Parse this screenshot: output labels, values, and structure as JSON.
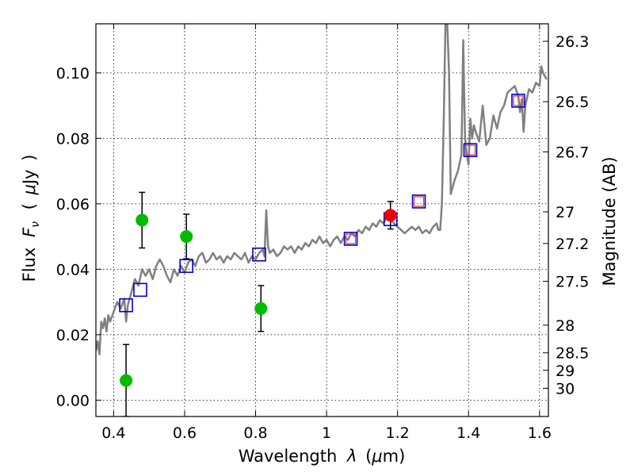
{
  "chart_data": {
    "type": "scatter",
    "xlabel_parts": [
      "Wavelength",
      "λ",
      "(",
      "μ",
      "m)"
    ],
    "ylabel_parts": [
      "Flux",
      "F",
      "ν",
      "(",
      "μ",
      "Jy",
      ")"
    ],
    "y2label": "Magnitude (AB)",
    "xlim": [
      0.35,
      1.625
    ],
    "ylim": [
      -0.005,
      0.115
    ],
    "xticks": [
      0.4,
      0.6,
      0.8,
      1.0,
      1.2,
      1.4,
      1.6
    ],
    "xtick_labels": [
      "0.4",
      "0.6",
      "0.8",
      "1",
      "1.2",
      "1.4",
      "1.6"
    ],
    "yticks": [
      0.0,
      0.02,
      0.04,
      0.06,
      0.08,
      0.1
    ],
    "ytick_labels": [
      "0.00",
      "0.02",
      "0.04",
      "0.06",
      "0.08",
      "0.10"
    ],
    "y2ticks": [
      26.3,
      26.5,
      26.7,
      27,
      27.2,
      27.5,
      28,
      28.5,
      29,
      30
    ],
    "y2tick_labels": [
      "26.3",
      "26.5",
      "26.7",
      "27",
      "27.2",
      "27.5",
      "28",
      "28.5",
      "29",
      "30"
    ],
    "grid": true,
    "colors": {
      "model": "#808080",
      "photometry": "#00bb00",
      "blue_squares": "#0000cc",
      "red_squares": "#dd4444",
      "red_point": "#ee0000",
      "errorbar": "#000000"
    },
    "series": [
      {
        "name": "model spectrum",
        "style": "line",
        "x": [
          0.35,
          0.355,
          0.36,
          0.365,
          0.37,
          0.375,
          0.38,
          0.385,
          0.39,
          0.4,
          0.41,
          0.42,
          0.43,
          0.435,
          0.44,
          0.45,
          0.46,
          0.47,
          0.48,
          0.49,
          0.5,
          0.51,
          0.52,
          0.53,
          0.54,
          0.55,
          0.56,
          0.57,
          0.58,
          0.59,
          0.6,
          0.61,
          0.62,
          0.63,
          0.64,
          0.65,
          0.66,
          0.67,
          0.68,
          0.69,
          0.7,
          0.71,
          0.72,
          0.73,
          0.74,
          0.75,
          0.76,
          0.77,
          0.78,
          0.79,
          0.8,
          0.81,
          0.82,
          0.825,
          0.83,
          0.835,
          0.84,
          0.85,
          0.86,
          0.87,
          0.88,
          0.89,
          0.9,
          0.91,
          0.92,
          0.93,
          0.94,
          0.95,
          0.96,
          0.97,
          0.98,
          0.99,
          1.0,
          1.01,
          1.02,
          1.03,
          1.04,
          1.05,
          1.06,
          1.07,
          1.08,
          1.09,
          1.1,
          1.11,
          1.12,
          1.13,
          1.14,
          1.15,
          1.16,
          1.17,
          1.18,
          1.19,
          1.2,
          1.21,
          1.22,
          1.23,
          1.24,
          1.25,
          1.26,
          1.27,
          1.28,
          1.29,
          1.3,
          1.31,
          1.315,
          1.32,
          1.325,
          1.33,
          1.335,
          1.34,
          1.345,
          1.35,
          1.36,
          1.37,
          1.38,
          1.385,
          1.39,
          1.395,
          1.4,
          1.405,
          1.41,
          1.415,
          1.42,
          1.43,
          1.44,
          1.45,
          1.46,
          1.47,
          1.48,
          1.49,
          1.5,
          1.51,
          1.52,
          1.53,
          1.54,
          1.545,
          1.55,
          1.555,
          1.56,
          1.57,
          1.58,
          1.59,
          1.6,
          1.605,
          1.61,
          1.62
        ],
        "y": [
          0.015,
          0.018,
          0.014,
          0.024,
          0.022,
          0.025,
          0.021,
          0.026,
          0.024,
          0.027,
          0.03,
          0.028,
          0.031,
          0.024,
          0.029,
          0.033,
          0.037,
          0.035,
          0.04,
          0.038,
          0.04,
          0.037,
          0.041,
          0.043,
          0.041,
          0.038,
          0.036,
          0.04,
          0.038,
          0.041,
          0.039,
          0.042,
          0.043,
          0.041,
          0.044,
          0.045,
          0.042,
          0.043,
          0.045,
          0.043,
          0.044,
          0.042,
          0.044,
          0.043,
          0.045,
          0.044,
          0.043,
          0.045,
          0.042,
          0.044,
          0.043,
          0.045,
          0.046,
          0.044,
          0.058,
          0.047,
          0.045,
          0.046,
          0.044,
          0.045,
          0.047,
          0.046,
          0.047,
          0.045,
          0.047,
          0.046,
          0.048,
          0.047,
          0.049,
          0.048,
          0.05,
          0.048,
          0.049,
          0.047,
          0.049,
          0.05,
          0.048,
          0.05,
          0.049,
          0.051,
          0.05,
          0.052,
          0.051,
          0.053,
          0.052,
          0.054,
          0.053,
          0.055,
          0.054,
          0.056,
          0.055,
          0.054,
          0.053,
          0.052,
          0.051,
          0.052,
          0.053,
          0.052,
          0.053,
          0.051,
          0.052,
          0.051,
          0.053,
          0.054,
          0.052,
          0.052,
          0.06,
          0.085,
          0.115,
          0.115,
          0.1,
          0.063,
          0.067,
          0.07,
          0.075,
          0.11,
          0.08,
          0.075,
          0.072,
          0.086,
          0.08,
          0.084,
          0.082,
          0.079,
          0.09,
          0.078,
          0.08,
          0.087,
          0.083,
          0.088,
          0.09,
          0.094,
          0.095,
          0.096,
          0.093,
          0.088,
          0.092,
          0.082,
          0.09,
          0.095,
          0.094,
          0.097,
          0.096,
          0.102,
          0.1,
          0.098
        ]
      },
      {
        "name": "photometry",
        "style": "filled-circle",
        "points": [
          {
            "x": 0.435,
            "y": 0.006,
            "err": 0.011
          },
          {
            "x": 0.48,
            "y": 0.055,
            "err": 0.0085
          },
          {
            "x": 0.605,
            "y": 0.05,
            "err": 0.0068
          },
          {
            "x": 0.815,
            "y": 0.028,
            "err": 0.007
          }
        ]
      },
      {
        "name": "model photometry (blue)",
        "style": "open-square",
        "points": [
          {
            "x": 0.435,
            "y": 0.029
          },
          {
            "x": 0.475,
            "y": 0.0337
          },
          {
            "x": 0.605,
            "y": 0.041
          },
          {
            "x": 0.81,
            "y": 0.0445
          },
          {
            "x": 1.18,
            "y": 0.0553
          },
          {
            "x": 1.26,
            "y": 0.0607
          },
          {
            "x": 1.405,
            "y": 0.0764
          },
          {
            "x": 1.54,
            "y": 0.0915
          }
        ]
      },
      {
        "name": "model photometry (red)",
        "style": "open-square-small",
        "points": [
          {
            "x": 1.068,
            "y": 0.0493
          },
          {
            "x": 1.26,
            "y": 0.0607
          },
          {
            "x": 1.405,
            "y": 0.0764
          },
          {
            "x": 1.54,
            "y": 0.0915
          }
        ]
      },
      {
        "name": "measured (red)",
        "style": "filled-circle",
        "points": [
          {
            "x": 1.18,
            "y": 0.0565,
            "err": 0.0042
          }
        ]
      }
    ],
    "extra_blue_square": {
      "x": 1.068,
      "y": 0.0493
    }
  }
}
